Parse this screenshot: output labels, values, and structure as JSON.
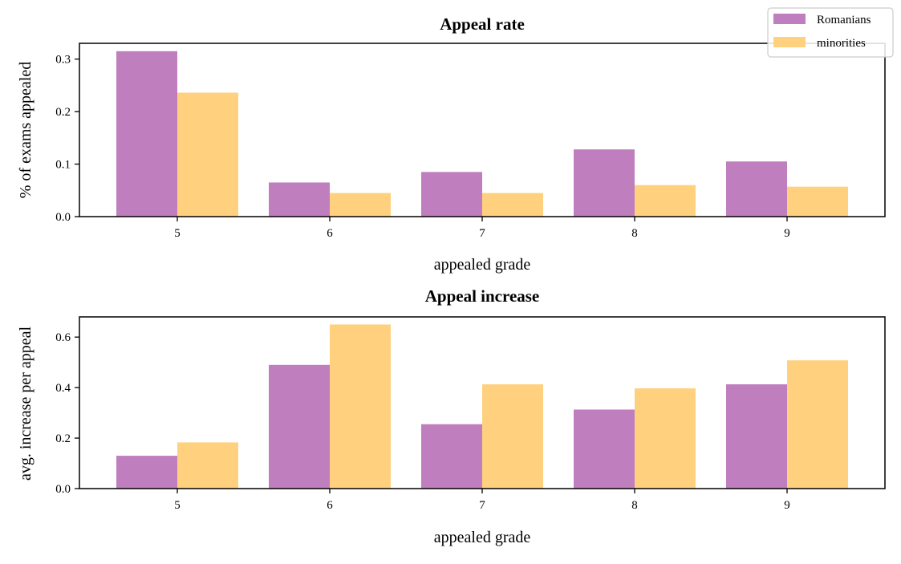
{
  "legend": {
    "placement": "top-right",
    "entries": [
      "Romanians",
      "minorities"
    ]
  },
  "colors": {
    "Romanians": "#bf7fbf",
    "minorities": "#ffd17f"
  },
  "chart_data": [
    {
      "type": "bar",
      "title": "Appeal rate",
      "xlabel": "appealed grade",
      "ylabel": "% of exams appealed",
      "categories": [
        "5",
        "6",
        "7",
        "8",
        "9"
      ],
      "series": [
        {
          "name": "Romanians",
          "values": [
            0.315,
            0.065,
            0.085,
            0.128,
            0.105
          ]
        },
        {
          "name": "minorities",
          "values": [
            0.236,
            0.045,
            0.045,
            0.06,
            0.057
          ]
        }
      ],
      "ylim": [
        0,
        0.33
      ],
      "yticks": [
        "0.0",
        "0.1",
        "0.2",
        "0.3"
      ],
      "grid": false
    },
    {
      "type": "bar",
      "title": "Appeal increase",
      "xlabel": "appealed grade",
      "ylabel": "avg. increase per appeal",
      "categories": [
        "5",
        "6",
        "7",
        "8",
        "9"
      ],
      "series": [
        {
          "name": "Romanians",
          "values": [
            0.13,
            0.49,
            0.255,
            0.313,
            0.413
          ]
        },
        {
          "name": "minorities",
          "values": [
            0.183,
            0.65,
            0.413,
            0.397,
            0.508
          ]
        }
      ],
      "ylim": [
        0,
        0.68
      ],
      "yticks": [
        "0.0",
        "0.2",
        "0.4",
        "0.6"
      ],
      "grid": false
    }
  ]
}
